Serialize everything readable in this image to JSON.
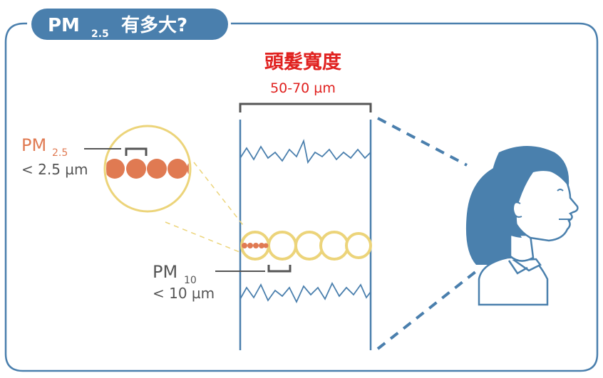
{
  "title": {
    "prefix": "PM",
    "subscript": "2.5",
    "suffix": "有多大?"
  },
  "hair": {
    "label": "頭髮寬度",
    "size": "50-70 µm"
  },
  "pm25": {
    "label": "PM",
    "subscript": "2.5",
    "size": "< 2.5 µm"
  },
  "pm10": {
    "label": "PM",
    "subscript": "10",
    "size": "< 10 µm"
  },
  "colors": {
    "frame_blue": "#4a7fad",
    "title_bg": "#4a7fad",
    "hair_red": "#e0211f",
    "pm25_orange": "#e07a52",
    "pm10_yellow": "#ecd47a",
    "person_blue": "#4a80ad",
    "gray_text": "#555555"
  },
  "icons": [
    "person-icon",
    "magnifier-circle-icon",
    "hair-strand-icon"
  ]
}
